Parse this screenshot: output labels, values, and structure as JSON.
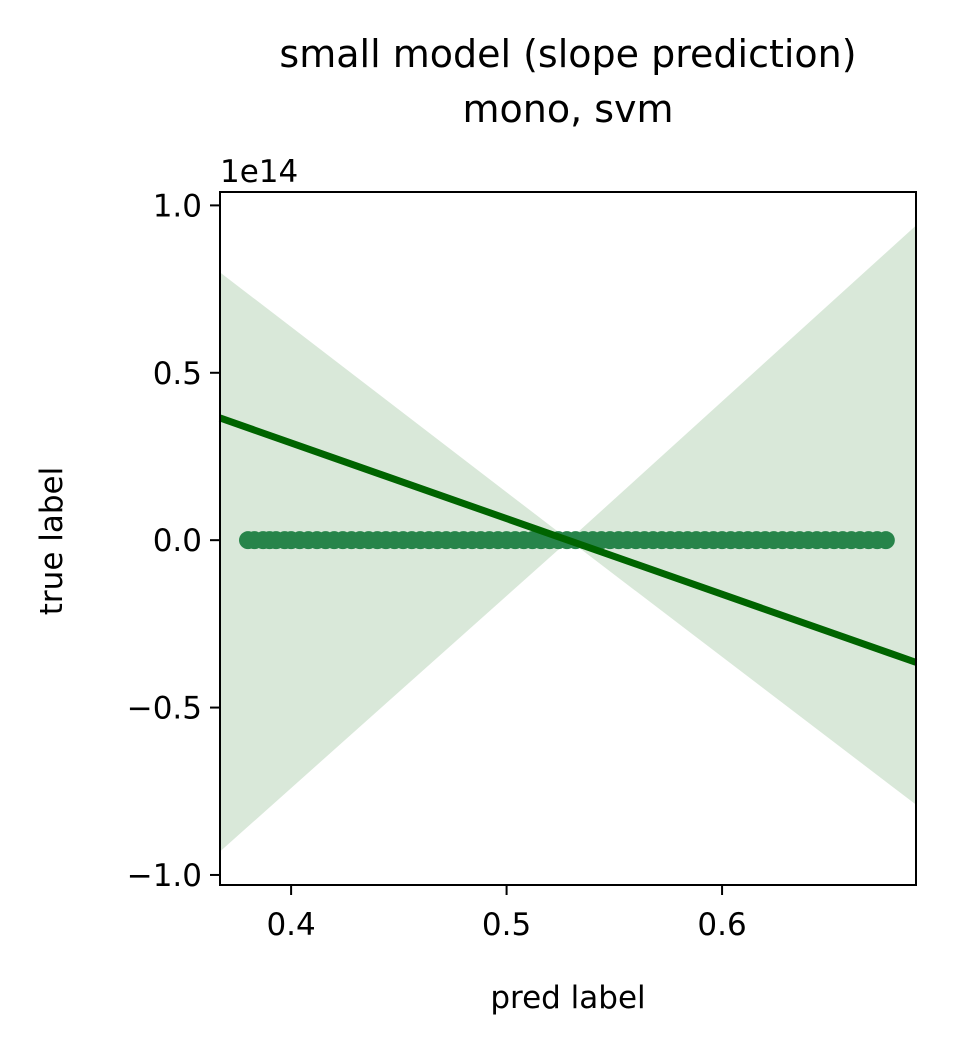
{
  "chart_data": {
    "type": "scatter",
    "title": "small model (slope prediction)\nmono, svm",
    "title_lines": [
      "small model (slope prediction)",
      "mono, svm"
    ],
    "xlabel": "pred label",
    "ylabel": "true label",
    "y_offset_label": "1e14",
    "y_scale_factor": 100000000000000.0,
    "xlim": [
      0.367,
      0.69
    ],
    "ylim": [
      -1.03,
      1.04
    ],
    "x_ticks": [
      0.4,
      0.5,
      0.6
    ],
    "x_tick_labels": [
      "0.4",
      "0.5",
      "0.6"
    ],
    "y_ticks": [
      -1.0,
      -0.5,
      0.0,
      0.5,
      1.0
    ],
    "y_tick_labels": [
      "−1.0",
      "−0.5",
      "0.0",
      "0.5",
      "1.0"
    ],
    "grid": false,
    "legend": "none",
    "points": {
      "x": [
        0.38,
        0.383,
        0.387,
        0.39,
        0.393,
        0.397,
        0.4,
        0.404,
        0.408,
        0.412,
        0.416,
        0.42,
        0.424,
        0.428,
        0.432,
        0.436,
        0.44,
        0.444,
        0.448,
        0.452,
        0.456,
        0.46,
        0.464,
        0.468,
        0.472,
        0.476,
        0.48,
        0.484,
        0.488,
        0.492,
        0.496,
        0.5,
        0.504,
        0.508,
        0.512,
        0.516,
        0.52,
        0.524,
        0.528,
        0.532,
        0.536,
        0.54,
        0.544,
        0.548,
        0.552,
        0.556,
        0.56,
        0.564,
        0.568,
        0.572,
        0.576,
        0.58,
        0.584,
        0.588,
        0.592,
        0.596,
        0.6,
        0.604,
        0.608,
        0.612,
        0.616,
        0.62,
        0.624,
        0.628,
        0.632,
        0.636,
        0.64,
        0.644,
        0.648,
        0.652,
        0.656,
        0.66,
        0.664,
        0.668,
        0.672,
        0.676
      ],
      "y": [
        0,
        0,
        0,
        0,
        0,
        0,
        0,
        0,
        0,
        0,
        0,
        0,
        0,
        0,
        0,
        0,
        0,
        0,
        0,
        0,
        0,
        0,
        0,
        0,
        0,
        0,
        0,
        0,
        0,
        0,
        0,
        0,
        0,
        0,
        0,
        0,
        0,
        0,
        0,
        0,
        0,
        0,
        0,
        0,
        0,
        0,
        0,
        0,
        0,
        0,
        0,
        0,
        0,
        0,
        0,
        0,
        0,
        0,
        0,
        0,
        0,
        0,
        0,
        0,
        0,
        0,
        0,
        0,
        0,
        0,
        0,
        0,
        0,
        0,
        0,
        0
      ]
    },
    "regression_line": {
      "x": [
        0.367,
        0.69
      ],
      "y": [
        0.365,
        -0.365
      ]
    },
    "confidence_band": {
      "x": [
        0.367,
        0.529,
        0.69
      ],
      "lower": [
        -0.93,
        0.0,
        -0.79
      ],
      "upper": [
        0.8,
        0.0,
        0.94
      ]
    },
    "colors": {
      "points": "#27844a",
      "line": "#006400",
      "band": "#d9e8d9",
      "axis": "#000000"
    }
  }
}
